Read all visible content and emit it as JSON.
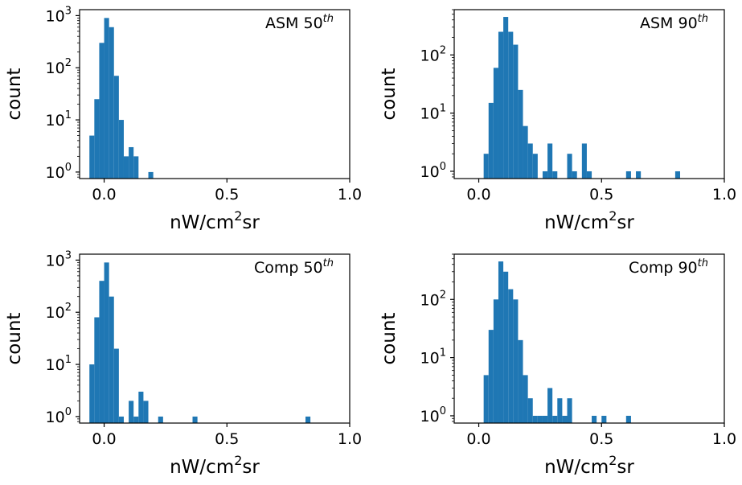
{
  "colors": {
    "bar": "#1f77b4",
    "axis": "#000000",
    "background": "#ffffff"
  },
  "chart_data": [
    {
      "type": "bar",
      "yscale": "log",
      "xlim": [
        -0.1,
        1.0
      ],
      "ylim": [
        0.75,
        1300
      ],
      "xlabel": "nW/cm²sr",
      "ylabel": "count",
      "xticks": [
        {
          "value": 0.0,
          "label": "0.0"
        },
        {
          "value": 0.5,
          "label": "0.5"
        },
        {
          "value": 1.0,
          "label": "1.0"
        }
      ],
      "yticks": [
        {
          "value": 1,
          "base": "10",
          "exp": "0"
        },
        {
          "value": 10,
          "base": "10",
          "exp": "1"
        },
        {
          "value": 100,
          "base": "10",
          "exp": "2"
        },
        {
          "value": 1000,
          "base": "10",
          "exp": "3"
        }
      ],
      "annotation": {
        "text": "ASM 50",
        "sup": "th"
      },
      "bin_width": 0.02,
      "bins": [
        {
          "x": -0.06,
          "count": 5
        },
        {
          "x": -0.04,
          "count": 25
        },
        {
          "x": -0.02,
          "count": 300
        },
        {
          "x": 0.0,
          "count": 900
        },
        {
          "x": 0.02,
          "count": 600
        },
        {
          "x": 0.04,
          "count": 70
        },
        {
          "x": 0.06,
          "count": 10
        },
        {
          "x": 0.08,
          "count": 2
        },
        {
          "x": 0.1,
          "count": 3
        },
        {
          "x": 0.12,
          "count": 2
        },
        {
          "x": 0.18,
          "count": 1
        }
      ]
    },
    {
      "type": "bar",
      "yscale": "log",
      "xlim": [
        -0.1,
        1.0
      ],
      "ylim": [
        0.75,
        600
      ],
      "xlabel": "nW/cm²sr",
      "ylabel": "count",
      "xticks": [
        {
          "value": 0.0,
          "label": "0.0"
        },
        {
          "value": 0.5,
          "label": "0.5"
        },
        {
          "value": 1.0,
          "label": "1.0"
        }
      ],
      "yticks": [
        {
          "value": 1,
          "base": "10",
          "exp": "0"
        },
        {
          "value": 10,
          "base": "10",
          "exp": "1"
        },
        {
          "value": 100,
          "base": "10",
          "exp": "2"
        }
      ],
      "annotation": {
        "text": "ASM 90",
        "sup": "th"
      },
      "bin_width": 0.02,
      "bins": [
        {
          "x": 0.02,
          "count": 2
        },
        {
          "x": 0.04,
          "count": 15
        },
        {
          "x": 0.06,
          "count": 60
        },
        {
          "x": 0.08,
          "count": 250
        },
        {
          "x": 0.1,
          "count": 450
        },
        {
          "x": 0.12,
          "count": 250
        },
        {
          "x": 0.14,
          "count": 150
        },
        {
          "x": 0.16,
          "count": 25
        },
        {
          "x": 0.18,
          "count": 6
        },
        {
          "x": 0.2,
          "count": 3
        },
        {
          "x": 0.22,
          "count": 2
        },
        {
          "x": 0.26,
          "count": 1
        },
        {
          "x": 0.28,
          "count": 3
        },
        {
          "x": 0.3,
          "count": 1
        },
        {
          "x": 0.36,
          "count": 2
        },
        {
          "x": 0.38,
          "count": 1
        },
        {
          "x": 0.42,
          "count": 3
        },
        {
          "x": 0.44,
          "count": 1
        },
        {
          "x": 0.6,
          "count": 1
        },
        {
          "x": 0.64,
          "count": 1
        },
        {
          "x": 0.8,
          "count": 1
        }
      ]
    },
    {
      "type": "bar",
      "yscale": "log",
      "xlim": [
        -0.1,
        1.0
      ],
      "ylim": [
        0.75,
        1300
      ],
      "xlabel": "nW/cm²sr",
      "ylabel": "count",
      "xticks": [
        {
          "value": 0.0,
          "label": "0.0"
        },
        {
          "value": 0.5,
          "label": "0.5"
        },
        {
          "value": 1.0,
          "label": "1.0"
        }
      ],
      "yticks": [
        {
          "value": 1,
          "base": "10",
          "exp": "0"
        },
        {
          "value": 10,
          "base": "10",
          "exp": "1"
        },
        {
          "value": 100,
          "base": "10",
          "exp": "2"
        },
        {
          "value": 1000,
          "base": "10",
          "exp": "3"
        }
      ],
      "annotation": {
        "text": "Comp 50",
        "sup": "th"
      },
      "bin_width": 0.02,
      "bins": [
        {
          "x": -0.06,
          "count": 10
        },
        {
          "x": -0.04,
          "count": 80
        },
        {
          "x": -0.02,
          "count": 400
        },
        {
          "x": 0.0,
          "count": 900
        },
        {
          "x": 0.02,
          "count": 200
        },
        {
          "x": 0.04,
          "count": 20
        },
        {
          "x": 0.06,
          "count": 1
        },
        {
          "x": 0.1,
          "count": 2
        },
        {
          "x": 0.12,
          "count": 1
        },
        {
          "x": 0.14,
          "count": 3
        },
        {
          "x": 0.16,
          "count": 2
        },
        {
          "x": 0.22,
          "count": 1
        },
        {
          "x": 0.36,
          "count": 1
        },
        {
          "x": 0.82,
          "count": 1
        }
      ]
    },
    {
      "type": "bar",
      "yscale": "log",
      "xlim": [
        -0.1,
        1.0
      ],
      "ylim": [
        0.75,
        600
      ],
      "xlabel": "nW/cm²sr",
      "ylabel": "count",
      "xticks": [
        {
          "value": 0.0,
          "label": "0.0"
        },
        {
          "value": 0.5,
          "label": "0.5"
        },
        {
          "value": 1.0,
          "label": "1.0"
        }
      ],
      "yticks": [
        {
          "value": 1,
          "base": "10",
          "exp": "0"
        },
        {
          "value": 10,
          "base": "10",
          "exp": "1"
        },
        {
          "value": 100,
          "base": "10",
          "exp": "2"
        }
      ],
      "annotation": {
        "text": "Comp 90",
        "sup": "th"
      },
      "bin_width": 0.02,
      "bins": [
        {
          "x": 0.02,
          "count": 5
        },
        {
          "x": 0.04,
          "count": 30
        },
        {
          "x": 0.06,
          "count": 100
        },
        {
          "x": 0.08,
          "count": 450
        },
        {
          "x": 0.1,
          "count": 300
        },
        {
          "x": 0.12,
          "count": 150
        },
        {
          "x": 0.14,
          "count": 100
        },
        {
          "x": 0.16,
          "count": 20
        },
        {
          "x": 0.18,
          "count": 5
        },
        {
          "x": 0.2,
          "count": 2
        },
        {
          "x": 0.22,
          "count": 1
        },
        {
          "x": 0.24,
          "count": 1
        },
        {
          "x": 0.26,
          "count": 1
        },
        {
          "x": 0.28,
          "count": 3
        },
        {
          "x": 0.3,
          "count": 1
        },
        {
          "x": 0.32,
          "count": 2
        },
        {
          "x": 0.34,
          "count": 1
        },
        {
          "x": 0.36,
          "count": 2
        },
        {
          "x": 0.46,
          "count": 1
        },
        {
          "x": 0.5,
          "count": 1
        },
        {
          "x": 0.6,
          "count": 1
        }
      ]
    }
  ]
}
